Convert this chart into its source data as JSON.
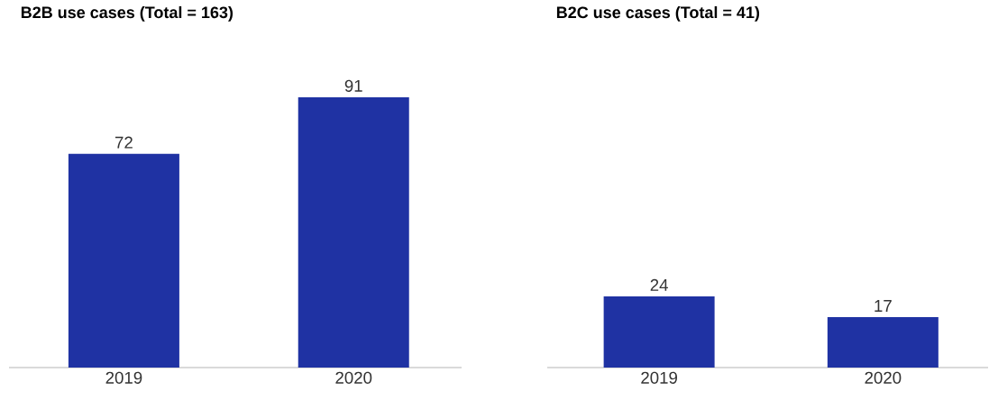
{
  "chart_data": [
    {
      "type": "bar",
      "title": "B2B use cases (Total = 163)",
      "categories": [
        "2019",
        "2020"
      ],
      "values": [
        72,
        91
      ],
      "color": "#1f32a3",
      "data_labels": true,
      "tick_labels": "x"
    },
    {
      "type": "bar",
      "title": "B2C use cases (Total = 41)",
      "categories": [
        "2019",
        "2020"
      ],
      "values": [
        24,
        17
      ],
      "color": "#1f32a3",
      "data_labels": true,
      "tick_labels": "x"
    }
  ]
}
